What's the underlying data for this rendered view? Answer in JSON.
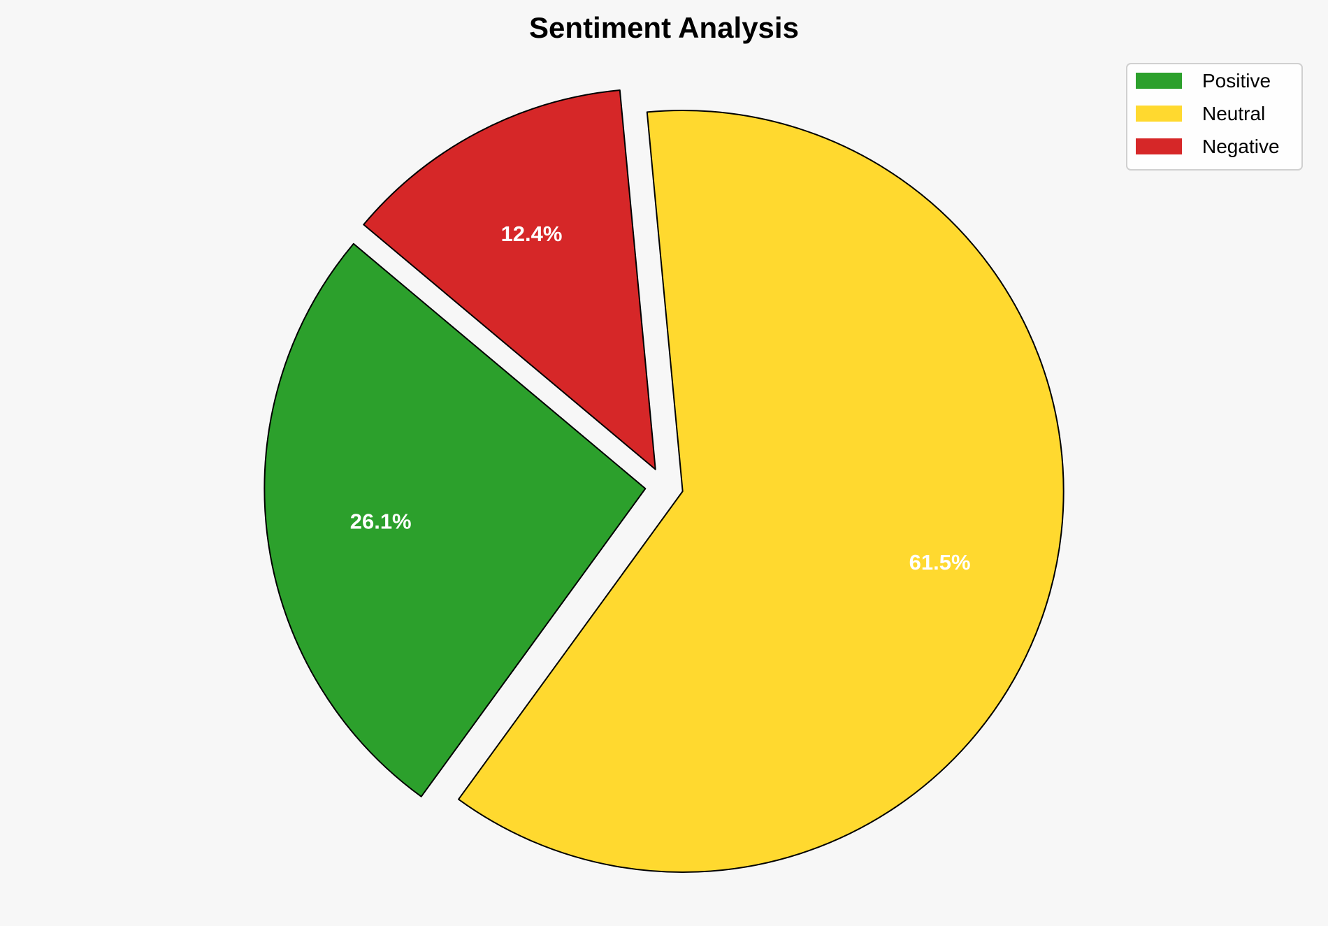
{
  "chart_data": {
    "type": "pie",
    "title": "Sentiment Analysis",
    "labels": [
      "Positive",
      "Neutral",
      "Negative"
    ],
    "values": [
      26.1,
      61.5,
      12.4
    ],
    "value_labels": [
      "26.1%",
      "61.5%",
      "12.4%"
    ],
    "colors": [
      "#2ca02c",
      "#ffd92f",
      "#d62728"
    ],
    "start_angle_deg": 140,
    "direction": "counterclockwise",
    "explode": [
      0.05,
      0.05,
      0.05
    ],
    "legend_position": "top-right",
    "edge_color": "#000000",
    "background": "#f7f7f7"
  }
}
